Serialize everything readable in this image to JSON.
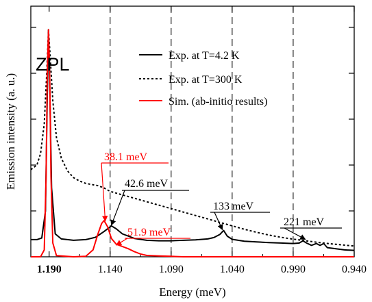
{
  "chart_data": {
    "type": "line",
    "xlabel": "Energy (meV)",
    "ylabel": "Emission intensity (a. u.)",
    "xlim": [
      1.205,
      0.94
    ],
    "x_reversed": true,
    "ylim": [
      0,
      1.0
    ],
    "x_ticks": [
      "1.190",
      "1.140",
      "1.090",
      "1.040",
      "0.990",
      "0.940"
    ],
    "x_tick_values": [
      1.19,
      1.14,
      1.09,
      1.04,
      0.99,
      0.94
    ],
    "bold_tick": "1.190",
    "dashed_vlines": [
      1.14,
      1.09,
      1.04,
      0.99
    ],
    "zpl_label": "ZPL",
    "legend": {
      "placement": "top-right",
      "entries": [
        {
          "label": "Exp. at T=4.2 K",
          "style": "solid",
          "color": "#000000"
        },
        {
          "label": "Exp. at T=300 K",
          "style": "dotted",
          "color": "#000000"
        },
        {
          "label": "Sim. (ab-initio results)",
          "style": "solid",
          "color": "#ff0000"
        }
      ]
    },
    "series": [
      {
        "style": "dotted",
        "color": "#000000",
        "points": [
          [
            1.205,
            0.38
          ],
          [
            1.2,
            0.4
          ],
          [
            1.197,
            0.45
          ],
          [
            1.194,
            0.58
          ],
          [
            1.192,
            0.8
          ],
          [
            1.1905,
            0.99
          ],
          [
            1.189,
            0.86
          ],
          [
            1.187,
            0.68
          ],
          [
            1.184,
            0.52
          ],
          [
            1.18,
            0.43
          ],
          [
            1.175,
            0.375
          ],
          [
            1.17,
            0.345
          ],
          [
            1.165,
            0.33
          ],
          [
            1.16,
            0.32
          ],
          [
            1.155,
            0.315
          ],
          [
            1.15,
            0.31
          ],
          [
            1.145,
            0.3
          ],
          [
            1.14,
            0.285
          ],
          [
            1.13,
            0.27
          ],
          [
            1.12,
            0.255
          ],
          [
            1.11,
            0.24
          ],
          [
            1.1,
            0.225
          ],
          [
            1.09,
            0.21
          ],
          [
            1.08,
            0.195
          ],
          [
            1.07,
            0.18
          ],
          [
            1.06,
            0.165
          ],
          [
            1.05,
            0.15
          ],
          [
            1.04,
            0.135
          ],
          [
            1.03,
            0.12
          ],
          [
            1.02,
            0.107
          ],
          [
            1.01,
            0.095
          ],
          [
            1.0,
            0.085
          ],
          [
            0.99,
            0.077
          ],
          [
            0.98,
            0.07
          ],
          [
            0.97,
            0.063
          ],
          [
            0.96,
            0.057
          ],
          [
            0.95,
            0.052
          ],
          [
            0.94,
            0.047
          ]
        ]
      },
      {
        "style": "solid",
        "color": "#000000",
        "points": [
          [
            1.205,
            0.075
          ],
          [
            1.2,
            0.075
          ],
          [
            1.196,
            0.082
          ],
          [
            1.193,
            0.2
          ],
          [
            1.1915,
            0.7
          ],
          [
            1.1905,
            0.99
          ],
          [
            1.1895,
            0.75
          ],
          [
            1.188,
            0.3
          ],
          [
            1.185,
            0.1
          ],
          [
            1.18,
            0.078
          ],
          [
            1.17,
            0.072
          ],
          [
            1.16,
            0.075
          ],
          [
            1.152,
            0.085
          ],
          [
            1.145,
            0.11
          ],
          [
            1.139,
            0.135
          ],
          [
            1.135,
            0.122
          ],
          [
            1.13,
            0.1
          ],
          [
            1.12,
            0.08
          ],
          [
            1.11,
            0.072
          ],
          [
            1.1,
            0.07
          ],
          [
            1.09,
            0.07
          ],
          [
            1.08,
            0.072
          ],
          [
            1.07,
            0.074
          ],
          [
            1.06,
            0.078
          ],
          [
            1.055,
            0.084
          ],
          [
            1.05,
            0.098
          ],
          [
            1.047,
            0.115
          ],
          [
            1.044,
            0.09
          ],
          [
            1.04,
            0.076
          ],
          [
            1.03,
            0.068
          ],
          [
            1.02,
            0.065
          ],
          [
            1.01,
            0.062
          ],
          [
            1.0,
            0.06
          ],
          [
            0.99,
            0.058
          ],
          [
            0.985,
            0.06
          ],
          [
            0.982,
            0.07
          ],
          [
            0.979,
            0.06
          ],
          [
            0.975,
            0.05
          ],
          [
            0.971,
            0.058
          ],
          [
            0.968,
            0.05
          ],
          [
            0.965,
            0.058
          ],
          [
            0.962,
            0.04
          ],
          [
            0.955,
            0.035
          ],
          [
            0.948,
            0.03
          ],
          [
            0.94,
            0.028
          ]
        ]
      },
      {
        "style": "solid",
        "color": "#ff0000",
        "points": [
          [
            1.205,
            0.0
          ],
          [
            1.197,
            0.0
          ],
          [
            1.194,
            0.03
          ],
          [
            1.1925,
            0.35
          ],
          [
            1.1915,
            0.8
          ],
          [
            1.1905,
            0.99
          ],
          [
            1.1895,
            0.78
          ],
          [
            1.1885,
            0.35
          ],
          [
            1.187,
            0.06
          ],
          [
            1.184,
            0.005
          ],
          [
            1.17,
            0.0
          ],
          [
            1.16,
            0.002
          ],
          [
            1.154,
            0.03
          ],
          [
            1.15,
            0.1
          ],
          [
            1.147,
            0.145
          ],
          [
            1.145,
            0.158
          ],
          [
            1.142,
            0.13
          ],
          [
            1.139,
            0.08
          ],
          [
            1.135,
            0.055
          ],
          [
            1.13,
            0.045
          ],
          [
            1.125,
            0.035
          ],
          [
            1.12,
            0.022
          ],
          [
            1.115,
            0.012
          ],
          [
            1.11,
            0.006
          ],
          [
            1.1,
            0.004
          ],
          [
            1.09,
            0.002
          ],
          [
            1.08,
            0.0
          ],
          [
            0.94,
            0.0
          ]
        ]
      }
    ],
    "annotations": [
      {
        "text": "38.1 meV",
        "color": "#ff0000",
        "point": [
          1.144,
          0.15
        ]
      },
      {
        "text": "42.6 meV",
        "color": "#000000",
        "point": [
          1.139,
          0.132
        ]
      },
      {
        "text": "51.9 meV",
        "color": "#ff0000",
        "point": [
          1.135,
          0.045
        ]
      },
      {
        "text": "133 meV",
        "color": "#000000",
        "point": [
          1.048,
          0.112
        ]
      },
      {
        "text": "221 meV",
        "color": "#000000",
        "point": [
          0.98,
          0.07
        ]
      }
    ]
  }
}
